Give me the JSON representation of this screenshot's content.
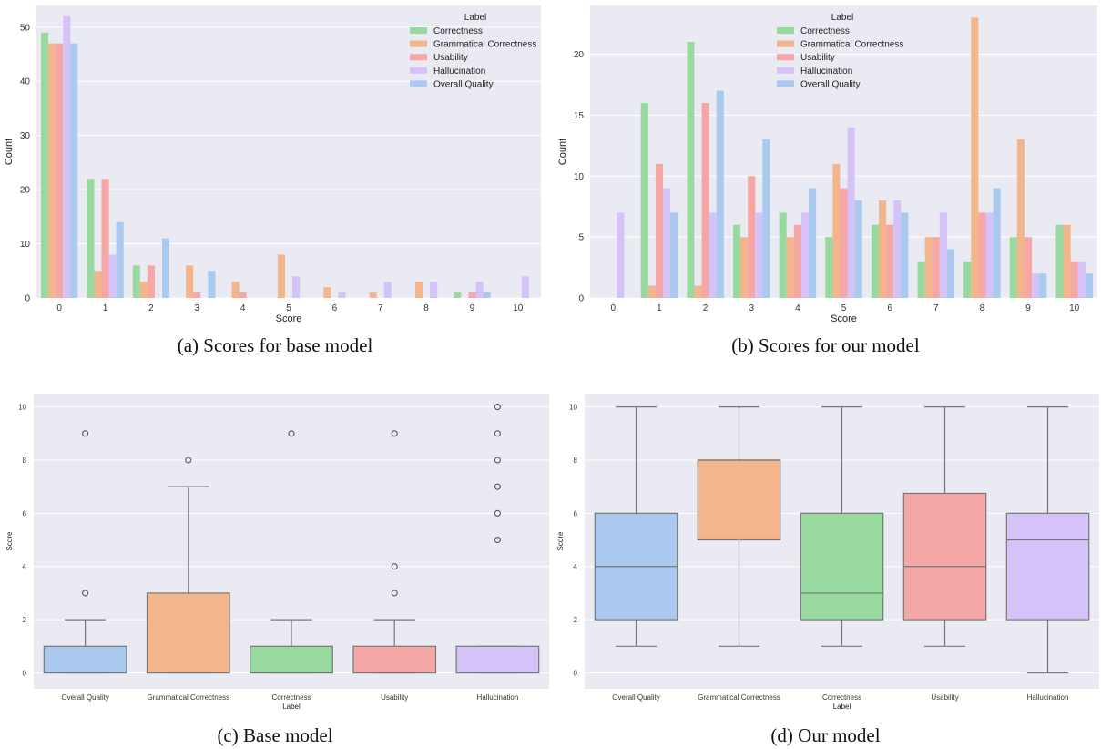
{
  "chart_data": [
    {
      "id": "a",
      "type": "bar",
      "caption": "(a) Scores for base model",
      "xlabel": "Score",
      "ylabel": "Count",
      "ylim": [
        0,
        54
      ],
      "yticks": [
        0,
        10,
        20,
        30,
        40,
        50
      ],
      "categories": [
        "0",
        "1",
        "2",
        "3",
        "4",
        "5",
        "6",
        "7",
        "8",
        "9",
        "10"
      ],
      "legend_title": "Label",
      "legend_position": "top-right",
      "grid": true,
      "series": [
        {
          "name": "Correctness",
          "color": "#98d9a0",
          "values": [
            49,
            22,
            6,
            0,
            0,
            0,
            0,
            0,
            0,
            1,
            0
          ]
        },
        {
          "name": "Grammatical Correctness",
          "color": "#f3b58c",
          "values": [
            47,
            5,
            3,
            6,
            3,
            8,
            2,
            1,
            3,
            0,
            0
          ]
        },
        {
          "name": "Usability",
          "color": "#f4a7a4",
          "values": [
            47,
            22,
            6,
            1,
            1,
            0,
            0,
            0,
            0,
            1,
            0
          ]
        },
        {
          "name": "Hallucination",
          "color": "#d5c2f8",
          "values": [
            52,
            8,
            0,
            0,
            0,
            4,
            1,
            3,
            3,
            3,
            4
          ]
        },
        {
          "name": "Overall Quality",
          "color": "#a9c9ee",
          "values": [
            47,
            14,
            11,
            5,
            0,
            0,
            0,
            0,
            0,
            1,
            0
          ]
        }
      ]
    },
    {
      "id": "b",
      "type": "bar",
      "caption": "(b) Scores for our model",
      "xlabel": "Score",
      "ylabel": "Count",
      "ylim": [
        0,
        24
      ],
      "yticks": [
        0,
        5,
        10,
        15,
        20
      ],
      "categories": [
        "0",
        "1",
        "2",
        "3",
        "4",
        "5",
        "6",
        "7",
        "8",
        "9",
        "10"
      ],
      "legend_title": "Label",
      "legend_position": "top-center",
      "grid": true,
      "series": [
        {
          "name": "Correctness",
          "color": "#98d9a0",
          "values": [
            0,
            16,
            21,
            6,
            7,
            5,
            6,
            3,
            3,
            5,
            6
          ]
        },
        {
          "name": "Grammatical Correctness",
          "color": "#f3b58c",
          "values": [
            0,
            1,
            1,
            5,
            5,
            11,
            8,
            5,
            23,
            13,
            6
          ]
        },
        {
          "name": "Usability",
          "color": "#f4a7a4",
          "values": [
            0,
            11,
            16,
            10,
            6,
            9,
            6,
            5,
            7,
            5,
            3
          ]
        },
        {
          "name": "Hallucination",
          "color": "#d5c2f8",
          "values": [
            7,
            9,
            7,
            7,
            7,
            14,
            8,
            7,
            7,
            2,
            3
          ]
        },
        {
          "name": "Overall Quality",
          "color": "#a9c9ee",
          "values": [
            0,
            7,
            17,
            13,
            9,
            8,
            7,
            4,
            9,
            2,
            2
          ]
        }
      ]
    },
    {
      "id": "c",
      "type": "box",
      "caption": "(c) Base model",
      "xlabel": "Label",
      "ylabel": "Score",
      "ylim": [
        -0.6,
        10.5
      ],
      "yticks": [
        0,
        2,
        4,
        6,
        8,
        10
      ],
      "grid": true,
      "boxes": [
        {
          "label": "Overall Quality",
          "color": "#a9c9ee",
          "q1": 0,
          "median": 0,
          "q3": 1,
          "whisker_low": 0,
          "whisker_high": 2,
          "outliers": [
            3,
            9
          ]
        },
        {
          "label": "Grammatical Correctness",
          "color": "#f3b58c",
          "q1": 0,
          "median": 0,
          "q3": 3,
          "whisker_low": 0,
          "whisker_high": 7,
          "outliers": [
            8
          ]
        },
        {
          "label": "Correctness",
          "color": "#98d9a0",
          "q1": 0,
          "median": 0,
          "q3": 1,
          "whisker_low": 0,
          "whisker_high": 2,
          "outliers": [
            9
          ]
        },
        {
          "label": "Usability",
          "color": "#f4a7a4",
          "q1": 0,
          "median": 0,
          "q3": 1,
          "whisker_low": 0,
          "whisker_high": 2,
          "outliers": [
            3,
            4,
            9
          ]
        },
        {
          "label": "Hallucination",
          "color": "#d5c2f8",
          "q1": 0,
          "median": 0,
          "q3": 1,
          "whisker_low": 0,
          "whisker_high": 1,
          "outliers": [
            5,
            6,
            7,
            8,
            9,
            10
          ]
        }
      ]
    },
    {
      "id": "d",
      "type": "box",
      "caption": "(d) Our model",
      "xlabel": "Label",
      "ylabel": "Score",
      "ylim": [
        -0.6,
        10.5
      ],
      "yticks": [
        0,
        2,
        4,
        6,
        8,
        10
      ],
      "grid": true,
      "boxes": [
        {
          "label": "Overall Quality",
          "color": "#a9c9ee",
          "q1": 2,
          "median": 4,
          "q3": 6,
          "whisker_low": 1,
          "whisker_high": 10,
          "outliers": []
        },
        {
          "label": "Grammatical Correctness",
          "color": "#f3b58c",
          "q1": 5,
          "median": 8,
          "q3": 8,
          "whisker_low": 1,
          "whisker_high": 10,
          "outliers": []
        },
        {
          "label": "Correctness",
          "color": "#98d9a0",
          "q1": 2,
          "median": 3,
          "q3": 6,
          "whisker_low": 1,
          "whisker_high": 10,
          "outliers": []
        },
        {
          "label": "Usability",
          "color": "#f4a7a4",
          "q1": 2,
          "median": 4,
          "q3": 6.75,
          "whisker_low": 1,
          "whisker_high": 10,
          "outliers": []
        },
        {
          "label": "Hallucination",
          "color": "#d5c2f8",
          "q1": 2,
          "median": 5,
          "q3": 6,
          "whisker_low": 0,
          "whisker_high": 10,
          "outliers": []
        }
      ]
    }
  ]
}
